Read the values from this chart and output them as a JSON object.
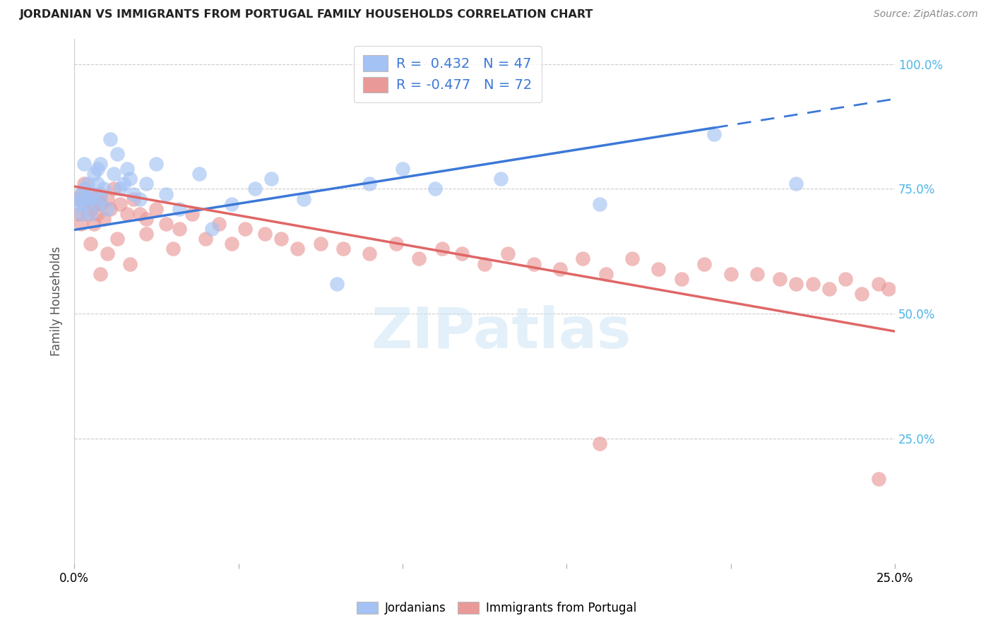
{
  "title": "JORDANIAN VS IMMIGRANTS FROM PORTUGAL FAMILY HOUSEHOLDS CORRELATION CHART",
  "source": "Source: ZipAtlas.com",
  "ylabel": "Family Households",
  "xlim": [
    0.0,
    0.25
  ],
  "ylim": [
    0.0,
    1.05
  ],
  "ytick_values": [
    0.25,
    0.5,
    0.75,
    1.0
  ],
  "legend_blue_r": "0.432",
  "legend_blue_n": "47",
  "legend_pink_r": "-0.477",
  "legend_pink_n": "72",
  "legend_label_blue": "Jordanians",
  "legend_label_pink": "Immigrants from Portugal",
  "blue_color": "#a4c2f4",
  "pink_color": "#ea9999",
  "blue_line_color": "#3c78d8",
  "pink_line_color": "#e06666",
  "blue_line_solid_end": 0.195,
  "blue_line_x0": 0.0,
  "blue_line_y0": 0.668,
  "blue_line_x1": 0.25,
  "blue_line_y1": 0.93,
  "pink_line_x0": 0.0,
  "pink_line_y0": 0.755,
  "pink_line_x1": 0.25,
  "pink_line_y1": 0.465,
  "watermark_text": "ZIPatlas",
  "blue_pts_x": [
    0.001,
    0.001,
    0.002,
    0.002,
    0.003,
    0.003,
    0.003,
    0.004,
    0.004,
    0.005,
    0.005,
    0.006,
    0.006,
    0.007,
    0.007,
    0.007,
    0.008,
    0.008,
    0.009,
    0.01,
    0.011,
    0.012,
    0.013,
    0.014,
    0.015,
    0.016,
    0.017,
    0.018,
    0.02,
    0.022,
    0.025,
    0.028,
    0.032,
    0.038,
    0.042,
    0.048,
    0.055,
    0.06,
    0.07,
    0.08,
    0.09,
    0.1,
    0.11,
    0.13,
    0.16,
    0.195,
    0.22
  ],
  "blue_pts_y": [
    0.72,
    0.73,
    0.7,
    0.74,
    0.72,
    0.75,
    0.8,
    0.73,
    0.76,
    0.7,
    0.73,
    0.74,
    0.78,
    0.72,
    0.76,
    0.79,
    0.73,
    0.8,
    0.75,
    0.71,
    0.85,
    0.78,
    0.82,
    0.75,
    0.76,
    0.79,
    0.77,
    0.74,
    0.73,
    0.76,
    0.8,
    0.74,
    0.71,
    0.78,
    0.67,
    0.72,
    0.75,
    0.77,
    0.73,
    0.56,
    0.76,
    0.79,
    0.75,
    0.77,
    0.72,
    0.86,
    0.76
  ],
  "pink_pts_x": [
    0.001,
    0.001,
    0.002,
    0.002,
    0.003,
    0.003,
    0.004,
    0.004,
    0.005,
    0.005,
    0.006,
    0.006,
    0.007,
    0.007,
    0.008,
    0.008,
    0.009,
    0.01,
    0.011,
    0.012,
    0.014,
    0.016,
    0.018,
    0.02,
    0.022,
    0.025,
    0.028,
    0.032,
    0.036,
    0.04,
    0.044,
    0.048,
    0.052,
    0.058,
    0.063,
    0.068,
    0.075,
    0.082,
    0.09,
    0.098,
    0.105,
    0.112,
    0.118,
    0.125,
    0.132,
    0.14,
    0.148,
    0.155,
    0.162,
    0.17,
    0.178,
    0.185,
    0.192,
    0.2,
    0.208,
    0.215,
    0.22,
    0.225,
    0.23,
    0.235,
    0.24,
    0.245,
    0.248,
    0.005,
    0.008,
    0.01,
    0.013,
    0.017,
    0.022,
    0.03,
    0.16,
    0.245
  ],
  "pink_pts_y": [
    0.73,
    0.7,
    0.74,
    0.68,
    0.72,
    0.76,
    0.7,
    0.73,
    0.71,
    0.74,
    0.72,
    0.68,
    0.73,
    0.7,
    0.72,
    0.74,
    0.69,
    0.73,
    0.71,
    0.75,
    0.72,
    0.7,
    0.73,
    0.7,
    0.69,
    0.71,
    0.68,
    0.67,
    0.7,
    0.65,
    0.68,
    0.64,
    0.67,
    0.66,
    0.65,
    0.63,
    0.64,
    0.63,
    0.62,
    0.64,
    0.61,
    0.63,
    0.62,
    0.6,
    0.62,
    0.6,
    0.59,
    0.61,
    0.58,
    0.61,
    0.59,
    0.57,
    0.6,
    0.58,
    0.58,
    0.57,
    0.56,
    0.56,
    0.55,
    0.57,
    0.54,
    0.56,
    0.55,
    0.64,
    0.58,
    0.62,
    0.65,
    0.6,
    0.66,
    0.63,
    0.24,
    0.17
  ]
}
